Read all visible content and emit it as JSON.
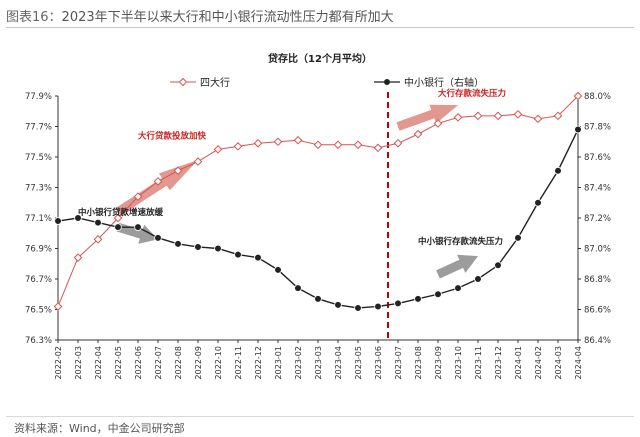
{
  "figure": {
    "label": "图表16：",
    "title": "2023年下半年以来大行和中小银行流动性压力都有所加大",
    "source": "资料来源：Wind，中金公司研究部"
  },
  "chart_data": {
    "type": "line",
    "title": "贷存比（12个月平均）",
    "x": [
      "2022-02",
      "2022-03",
      "2022-04",
      "2022-05",
      "2022-06",
      "2022-07",
      "2022-08",
      "2022-09",
      "2022-10",
      "2022-11",
      "2022-12",
      "2023-01",
      "2023-02",
      "2023-03",
      "2023-04",
      "2023-05",
      "2023-06",
      "2023-07",
      "2023-08",
      "2023-09",
      "2023-10",
      "2023-11",
      "2023-12",
      "2024-01",
      "2024-02",
      "2024-03",
      "2024-04"
    ],
    "series": [
      {
        "name": "四大行",
        "axis": "left",
        "color": "#d9534f",
        "marker": "diamond-open",
        "values": [
          76.52,
          76.84,
          76.96,
          77.1,
          77.24,
          77.34,
          77.41,
          77.47,
          77.55,
          77.57,
          77.59,
          77.6,
          77.61,
          77.58,
          77.58,
          77.58,
          77.56,
          77.59,
          77.65,
          77.72,
          77.76,
          77.77,
          77.77,
          77.78,
          77.75,
          77.77,
          77.9
        ]
      },
      {
        "name": "中小银行（右轴）",
        "axis": "right",
        "color": "#222222",
        "marker": "circle-filled",
        "values": [
          87.18,
          87.2,
          87.17,
          87.14,
          87.14,
          87.07,
          87.03,
          87.01,
          87.0,
          86.96,
          86.94,
          86.86,
          86.74,
          86.67,
          86.63,
          86.61,
          86.62,
          86.64,
          86.67,
          86.7,
          86.74,
          86.8,
          86.89,
          87.07,
          87.3,
          87.51,
          87.78
        ]
      }
    ],
    "y_left": {
      "min": 76.3,
      "max": 77.9,
      "ticks": [
        "76.3%",
        "76.5%",
        "76.7%",
        "76.9%",
        "77.1%",
        "77.3%",
        "77.5%",
        "77.7%",
        "77.9%"
      ]
    },
    "y_right": {
      "min": 86.4,
      "max": 88.0,
      "ticks": [
        "86.4%",
        "86.6%",
        "86.8%",
        "87.0%",
        "87.2%",
        "87.4%",
        "87.6%",
        "87.8%",
        "88.0%"
      ]
    },
    "divider_after": "2023-06",
    "legend_placement": "top",
    "grid": false,
    "annotations": [
      {
        "text": "大行贷款投放加快",
        "color": "#cc2222",
        "anchor": "2022-06",
        "value": 77.62,
        "axis": "left"
      },
      {
        "text": "大行存款流失压力",
        "color": "#cc2222",
        "anchor": "2023-09",
        "value": 77.9,
        "axis": "left"
      },
      {
        "text": "中小银行贷款增速放缓",
        "color": "#222222",
        "anchor": "2022-03",
        "value": 87.22,
        "axis": "right"
      },
      {
        "text": "中小银行存款流失压力",
        "color": "#222222",
        "anchor": "2023-08",
        "value": 87.03,
        "axis": "right"
      }
    ],
    "arrows": [
      {
        "color": "#e3988f",
        "from_x": "2022-05",
        "from_y": 77.14,
        "to_x": "2022-09",
        "to_y": 77.48,
        "axis": "left"
      },
      {
        "color": "#e3988f",
        "from_x": "2023-07",
        "from_y": 77.7,
        "to_x": "2023-10",
        "to_y": 77.84,
        "axis": "left"
      },
      {
        "color": "#9c9c9c",
        "from_x": "2022-05",
        "from_y": 87.14,
        "to_x": "2022-07",
        "to_y": 87.06,
        "axis": "right"
      },
      {
        "color": "#9c9c9c",
        "from_x": "2023-09",
        "from_y": 86.83,
        "to_x": "2023-11",
        "to_y": 86.95,
        "axis": "right"
      }
    ]
  }
}
